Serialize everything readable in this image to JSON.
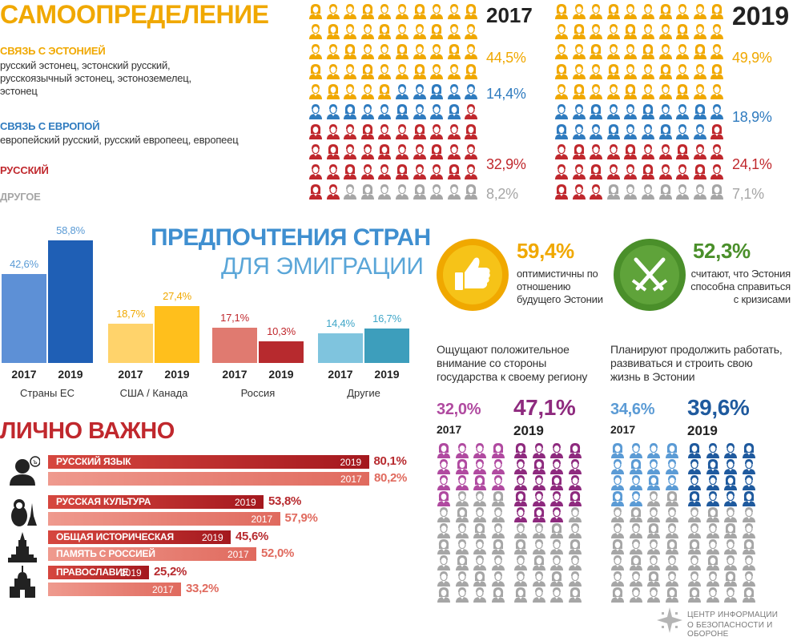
{
  "self_id": {
    "title": "САМООПРЕДЕЛЕНИЕ",
    "groups": [
      {
        "heading": "СВЯЗЬ С ЭСТОНИЕЙ",
        "detail": "русский эстонец, эстонский русский, русскоязычный эстонец, эстоноземелец, эстонец",
        "color": "#f0a800"
      },
      {
        "heading": "СВЯЗЬ С ЕВРОПОЙ",
        "detail": "европейский русский, русский европеец, европеец",
        "color": "#2f7bbf"
      },
      {
        "heading": "РУССКИЙ",
        "detail": "",
        "color": "#c0282d"
      },
      {
        "heading": "ДРУГОЕ",
        "detail": "",
        "color": "#a6a6a6"
      }
    ],
    "years": [
      {
        "year": "2017",
        "values": [
          "44,5%",
          "14,4%",
          "32,9%",
          "8,2%"
        ],
        "shares": [
          44.5,
          14.4,
          32.9,
          8.2
        ]
      },
      {
        "year": "2019",
        "values": [
          "49,9%",
          "18,9%",
          "24,1%",
          "7,1%"
        ],
        "shares": [
          49.9,
          18.9,
          24.1,
          7.1
        ]
      }
    ]
  },
  "emigration": {
    "title_line1": "ПРЕДПОЧТЕНИЯ СТРАН",
    "title_line2": "ДЛЯ ЭМИГРАЦИИ",
    "groups": [
      {
        "name": "Страны ЕС",
        "labels": [
          "42,6%",
          "58,8%"
        ],
        "values": [
          42.6,
          58.8
        ],
        "colors": [
          "#5d90d6",
          "#1f5fb5"
        ],
        "label_color": "#5b9bd5"
      },
      {
        "name": "США / Канада",
        "labels": [
          "18,7%",
          "27,4%"
        ],
        "values": [
          18.7,
          27.4
        ],
        "colors": [
          "#ffd36b",
          "#ffbf1c"
        ],
        "label_color": "#f0a800"
      },
      {
        "name": "Россия",
        "labels": [
          "17,1%",
          "10,3%"
        ],
        "values": [
          17.1,
          10.3
        ],
        "colors": [
          "#e07a70",
          "#b72a2e"
        ],
        "label_color": "#c0282d"
      },
      {
        "name": "Другие",
        "labels": [
          "14,4%",
          "16,7%"
        ],
        "values": [
          14.4,
          16.7
        ],
        "colors": [
          "#7fc4de",
          "#3d9ebc"
        ],
        "label_color": "#3fa6c8"
      }
    ],
    "years": [
      "2017",
      "2019"
    ]
  },
  "important": {
    "title": "ЛИЧНО ВАЖНО",
    "items": [
      {
        "label_line1": "РУССКИЙ ЯЗЫК",
        "label_line2": "",
        "v2019": "80,1%",
        "v2017": "80,2%",
        "f2019": 80.1,
        "f2017": 80.2,
        "icon": "speaking-person-icon"
      },
      {
        "label_line1": "РУССКАЯ КУЛЬТУРА",
        "label_line2": "",
        "v2019": "53,8%",
        "v2017": "57,9%",
        "f2019": 53.8,
        "f2017": 57.9,
        "icon": "matryoshka-balalaika-icon"
      },
      {
        "label_line1": "ОБЩАЯ ИСТОРИЧЕСКАЯ",
        "label_line2": "ПАМЯТЬ С РОССИЕЙ",
        "v2019": "45,6%",
        "v2017": "52,0%",
        "f2019": 45.6,
        "f2017": 52.0,
        "icon": "kremlin-tower-icon"
      },
      {
        "label_line1": "ПРАВОСЛАВИЕ",
        "label_line2": "",
        "v2019": "25,2%",
        "v2017": "33,2%",
        "f2019": 25.2,
        "f2017": 33.2,
        "icon": "orthodox-church-icon"
      }
    ],
    "year_a": "2019",
    "year_b": "2017"
  },
  "optimism": {
    "value": "59,4%",
    "text": "оптимистичны по отношению будущего Эстонии",
    "icon": "thumbs-up-icon"
  },
  "crisis": {
    "value": "52,3%",
    "text": "считают, что Эстония способна справиться с кризисами",
    "icon": "crossed-swords-icon"
  },
  "positive_attention": {
    "heading": "Ощущают положительное внимание со стороны государства к своему региону",
    "years": [
      {
        "value": "32,0%",
        "year": "2017",
        "share": 32.0
      },
      {
        "value": "47,1%",
        "year": "2019",
        "share": 47.1
      }
    ]
  },
  "plan_to_stay": {
    "heading": "Планируют продолжить работать, развиваться и строить свою жизнь в Эстонии",
    "years": [
      {
        "value": "34,6%",
        "year": "2017",
        "share": 34.6
      },
      {
        "value": "39,6%",
        "year": "2019",
        "share": 39.6
      }
    ]
  },
  "footer": {
    "org_line1": "ЦЕНТР ИНФОРМАЦИИ",
    "org_line2": "О БЕЗОПАСНОСТИ И ОБОРОНЕ",
    "icon": "security-center-logo-icon"
  },
  "colors": {
    "yellow": "#f0a800",
    "blue": "#2f7bbf",
    "red": "#c0282d",
    "grey": "#a6a6a6",
    "purple": "#8e2a7e",
    "purple_light": "#b04aa0",
    "sky": "#5b9bd5",
    "navy": "#1f5a9e",
    "green": "#4a8f2a"
  }
}
